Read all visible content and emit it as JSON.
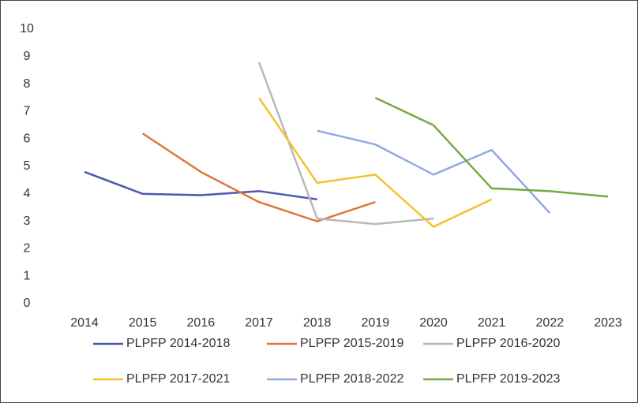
{
  "chart_data": {
    "type": "line",
    "categories": [
      "2014",
      "2015",
      "2016",
      "2017",
      "2018",
      "2019",
      "2020",
      "2021",
      "2022",
      "2023"
    ],
    "series": [
      {
        "name": "PLPFP 2014-2018",
        "color": "#4a58b0",
        "values": [
          4.8,
          4.0,
          3.95,
          4.1,
          3.8,
          null,
          null,
          null,
          null,
          null
        ]
      },
      {
        "name": "PLPFP 2015-2019",
        "color": "#e0763a",
        "values": [
          null,
          6.2,
          4.8,
          3.7,
          3.0,
          3.7,
          null,
          null,
          null,
          null
        ]
      },
      {
        "name": "PLPFP 2016-2020",
        "color": "#b8b8b8",
        "values": [
          null,
          null,
          null,
          8.8,
          3.1,
          2.9,
          3.1,
          null,
          null,
          null
        ]
      },
      {
        "name": "PLPFP 2017-2021",
        "color": "#f2c232",
        "values": [
          null,
          null,
          null,
          7.5,
          4.4,
          4.7,
          2.8,
          3.8,
          null,
          null
        ]
      },
      {
        "name": "PLPFP 2018-2022",
        "color": "#93a8e0",
        "values": [
          null,
          null,
          null,
          null,
          6.3,
          5.8,
          4.7,
          5.6,
          3.3,
          null
        ]
      },
      {
        "name": "PLPFP 2019-2023",
        "color": "#78a843",
        "values": [
          null,
          null,
          null,
          null,
          null,
          7.5,
          6.5,
          4.2,
          4.1,
          3.9
        ]
      }
    ],
    "ylim": [
      0,
      10
    ],
    "yticks": [
      0,
      1,
      2,
      3,
      4,
      5,
      6,
      7,
      8,
      9,
      10
    ],
    "grid": false,
    "legend": "bottom"
  }
}
